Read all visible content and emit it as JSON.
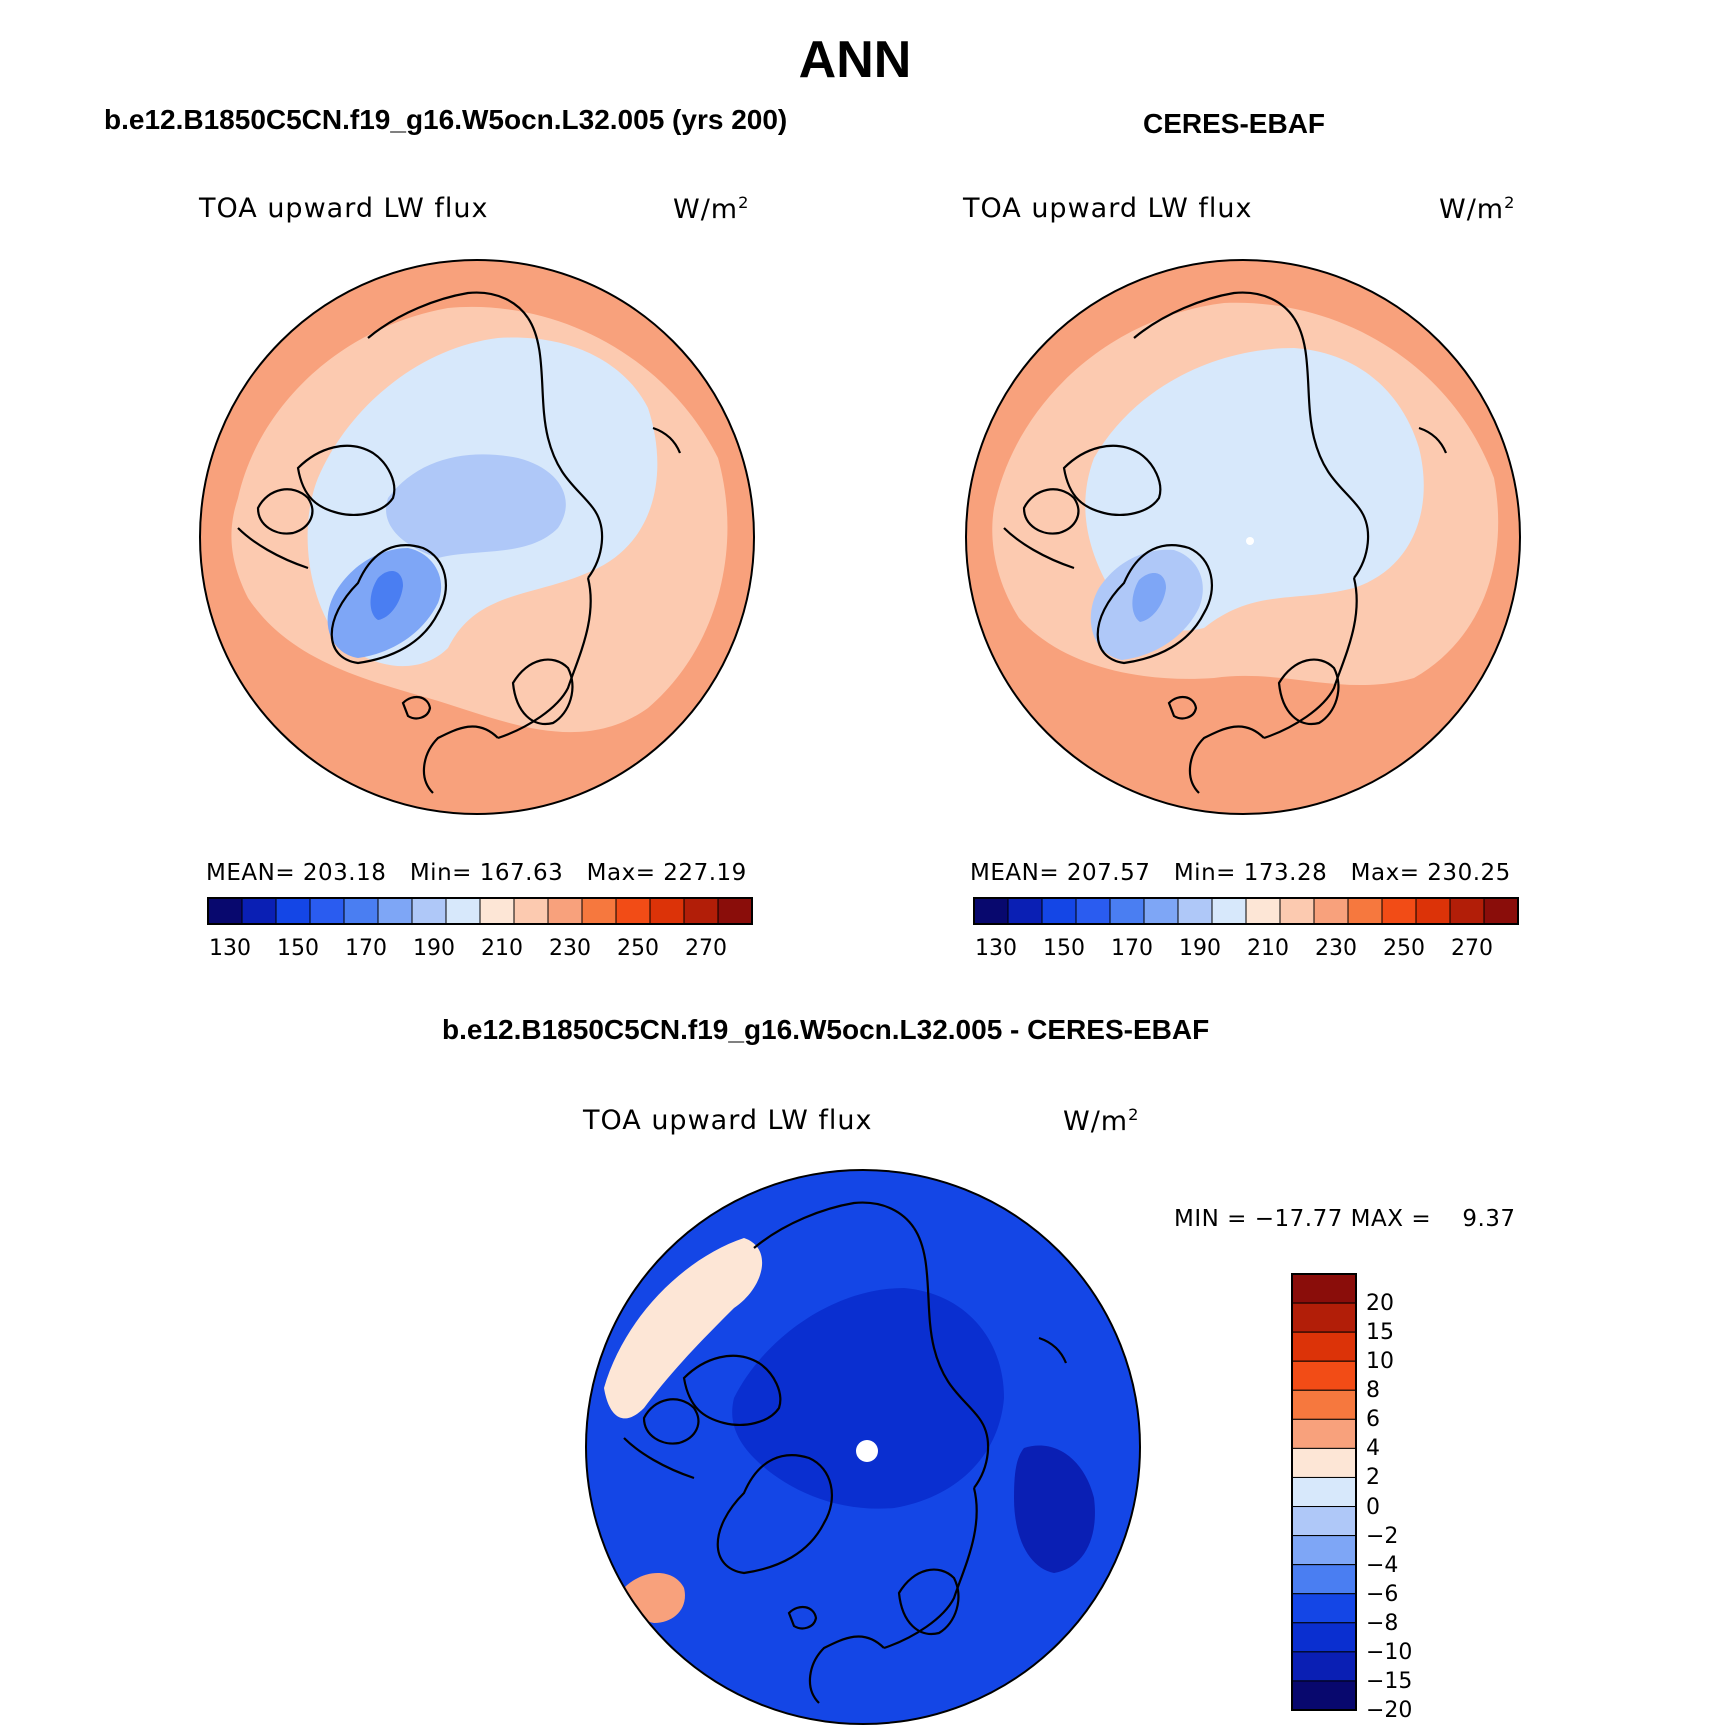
{
  "page": {
    "title": "ANN"
  },
  "colors": {
    "blue_red_palette": [
      "#08086e",
      "#0a1fb4",
      "#1446e6",
      "#2a5cf0",
      "#4a7ef2",
      "#7ea6f6",
      "#afc8f8",
      "#d7e8fb",
      "#fde6d6",
      "#fccab0",
      "#f8a17c",
      "#f6783e",
      "#f24c16",
      "#dc3308",
      "#b21e08",
      "#8a0d0a"
    ],
    "diff_palette_top_to_bottom": [
      "#8a0d0a",
      "#b21e08",
      "#dc3308",
      "#f24c16",
      "#f6783e",
      "#f8a17c",
      "#fde6d6",
      "#d7e8fb",
      "#afc8f8",
      "#7ea6f6",
      "#4a7ef2",
      "#1446e6",
      "#0a2fd0",
      "#0a1fb4",
      "#08086e"
    ],
    "coastline": "#000000"
  },
  "chart_data": [
    {
      "type": "heatmap",
      "projection": "north polar stereographic",
      "title": "b.e12.B1850C5CN.f19_g16.W5ocn.L32.005 (yrs 200)",
      "variable": "TOA upward LW flux",
      "units_base": "W/m",
      "units_exp": "2",
      "stats": {
        "mean_label": "MEAN=",
        "mean": "203.18",
        "min_label": "Min=",
        "min": "167.63",
        "max_label": "Max=",
        "max": "227.19"
      },
      "colorbar": {
        "orientation": "horizontal",
        "tick_labels": [
          "130",
          "150",
          "170",
          "190",
          "210",
          "230",
          "250",
          "270"
        ],
        "levels": [
          120,
          130,
          140,
          150,
          160,
          170,
          180,
          190,
          200,
          210,
          220,
          230,
          240,
          250,
          260,
          270,
          280
        ]
      },
      "regions": [
        {
          "name": "outer-ring",
          "value": 222
        },
        {
          "name": "mid-latitudes",
          "value": 210
        },
        {
          "name": "arctic-ocean",
          "value": 195
        },
        {
          "name": "central-arctic",
          "value": 185
        },
        {
          "name": "greenland",
          "value": 178
        },
        {
          "name": "greenland-core",
          "value": 168
        }
      ]
    },
    {
      "type": "heatmap",
      "projection": "north polar stereographic",
      "title": "CERES-EBAF",
      "variable": "TOA upward LW flux",
      "units_base": "W/m",
      "units_exp": "2",
      "stats": {
        "mean_label": "MEAN=",
        "mean": "207.57",
        "min_label": "Min=",
        "min": "173.28",
        "max_label": "Max=",
        "max": "230.25"
      },
      "colorbar": {
        "orientation": "horizontal",
        "tick_labels": [
          "130",
          "150",
          "170",
          "190",
          "210",
          "230",
          "250",
          "270"
        ],
        "levels": [
          120,
          130,
          140,
          150,
          160,
          170,
          180,
          190,
          200,
          210,
          220,
          230,
          240,
          250,
          260,
          270,
          280
        ]
      },
      "regions": [
        {
          "name": "outer-ring",
          "value": 226
        },
        {
          "name": "mid-latitudes",
          "value": 214
        },
        {
          "name": "arctic-ocean",
          "value": 196
        },
        {
          "name": "greenland",
          "value": 182
        },
        {
          "name": "greenland-core",
          "value": 175
        }
      ]
    },
    {
      "type": "heatmap",
      "projection": "north polar stereographic",
      "title": "b.e12.B1850C5CN.f19_g16.W5ocn.L32.005 - CERES-EBAF",
      "variable": "TOA upward LW flux",
      "units_base": "W/m",
      "units_exp": "2",
      "stats": {
        "min_label": "MIN =",
        "min": "−17.77",
        "max_label": "MAX =",
        "max": "9.37"
      },
      "colorbar": {
        "orientation": "vertical",
        "tick_labels_top_to_bottom": [
          "20",
          "15",
          "10",
          "8",
          "6",
          "4",
          "2",
          "0",
          "−2",
          "−4",
          "−6",
          "−8",
          "−10",
          "−15",
          "−20"
        ]
      },
      "regions": [
        {
          "name": "background",
          "value": -8
        },
        {
          "name": "pacific-positive",
          "value": 3
        },
        {
          "name": "atlantic-positive",
          "value": 5
        },
        {
          "name": "arctic-negative",
          "value": -10
        },
        {
          "name": "east-negative",
          "value": -12
        }
      ]
    }
  ]
}
